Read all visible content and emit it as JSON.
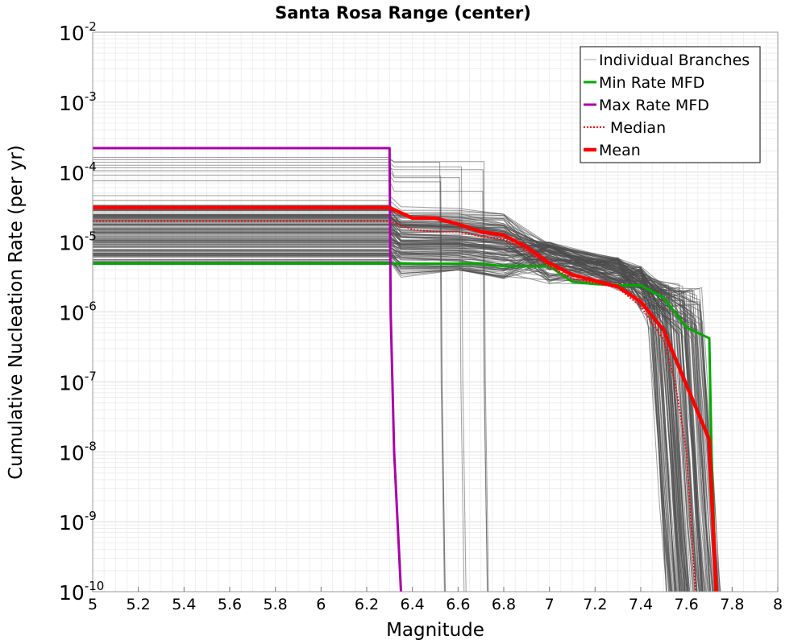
{
  "chart_data": {
    "type": "line",
    "title": "Santa Rosa Range (center)",
    "xlabel": "Magnitude",
    "ylabel": "Cumulative Nucleation Rate (per yr)",
    "xlim": [
      5,
      8
    ],
    "ylim": [
      1e-10,
      0.01
    ],
    "y_scale": "log",
    "grid": true,
    "legend_position": "top-right",
    "x_ticks": [
      "5",
      "5.2",
      "5.4",
      "5.6",
      "5.8",
      "6",
      "6.2",
      "6.4",
      "6.6",
      "6.8",
      "7",
      "7.2",
      "7.4",
      "7.6",
      "7.8",
      "8"
    ],
    "y_ticks": [
      {
        "value": 1e-10,
        "base": "10",
        "exp": "-10"
      },
      {
        "value": 1e-09,
        "base": "10",
        "exp": "-9"
      },
      {
        "value": 1e-08,
        "base": "10",
        "exp": "-8"
      },
      {
        "value": 1e-07,
        "base": "10",
        "exp": "-7"
      },
      {
        "value": 1e-06,
        "base": "10",
        "exp": "-6"
      },
      {
        "value": 1e-05,
        "base": "10",
        "exp": "-5"
      },
      {
        "value": 0.0001,
        "base": "10",
        "exp": "-4"
      },
      {
        "value": 0.001,
        "base": "10",
        "exp": "-3"
      },
      {
        "value": 0.01,
        "base": "10",
        "exp": "-2"
      }
    ],
    "branches": {
      "name": "Individual Branches",
      "color": "#4d4d4d",
      "plateau_samples": [
        4.9e-06,
        6.2e-06,
        7.5e-06,
        9e-06,
        1.1e-05,
        1.3e-05,
        1.5e-05,
        1.8e-05,
        2.1e-05,
        2.4e-05,
        2.8e-05,
        3.3e-05,
        3.9e-05,
        4.6e-05,
        7.5e-05,
        9e-05,
        0.000105,
        0.000115,
        0.000125,
        0.000138,
        0.00015,
        0.000162
      ],
      "early_cutoff_magnitudes": [
        6.52,
        6.61,
        6.71
      ]
    },
    "series": [
      {
        "name": "Min Rate MFD",
        "color": "#00aa00",
        "style": "solid",
        "x": [
          5.0,
          6.3,
          6.4,
          6.5,
          6.6,
          6.7,
          6.8,
          6.9,
          7.0,
          7.1,
          7.2,
          7.3,
          7.4,
          7.5,
          7.6,
          7.7,
          7.71,
          7.72,
          7.73
        ],
        "y": [
          4.9e-06,
          4.9e-06,
          4.9e-06,
          4.9e-06,
          4.9e-06,
          4.9e-06,
          4.5e-06,
          4.5e-06,
          4.5e-06,
          2.7e-06,
          2.5e-06,
          2.4e-06,
          2.4e-06,
          1.6e-06,
          6e-07,
          4.2e-07,
          1e-08,
          1e-09,
          1e-10
        ]
      },
      {
        "name": "Max Rate MFD",
        "color": "#aa00aa",
        "style": "solid",
        "x": [
          5.0,
          6.3,
          6.305,
          6.32,
          6.35
        ],
        "y": [
          0.00022,
          0.00022,
          1e-06,
          1e-08,
          1e-10
        ]
      },
      {
        "name": "Median",
        "color": "#ff0000",
        "style": "dotted",
        "x": [
          5.0,
          6.3,
          6.4,
          6.5,
          6.6,
          6.7,
          6.8,
          6.9,
          7.0,
          7.1,
          7.2,
          7.3,
          7.4,
          7.5,
          7.55,
          7.6,
          7.62,
          7.64
        ],
        "y": [
          2e-05,
          2e-05,
          1.5e-05,
          1.4e-05,
          1.4e-05,
          1.2e-05,
          1.1e-05,
          7.5e-06,
          4.5e-06,
          3e-06,
          2.6e-06,
          2.2e-06,
          1.2e-06,
          4e-07,
          1e-07,
          1e-08,
          1e-09,
          1e-10
        ]
      },
      {
        "name": "Mean",
        "color": "#ff0000",
        "style": "solid-thick",
        "x": [
          5.0,
          6.3,
          6.4,
          6.5,
          6.6,
          6.7,
          6.8,
          6.9,
          7.0,
          7.1,
          7.2,
          7.3,
          7.4,
          7.5,
          7.6,
          7.7,
          7.73
        ],
        "y": [
          3.1e-05,
          3.1e-05,
          2.2e-05,
          2.2e-05,
          1.8e-05,
          1.4e-05,
          1.25e-05,
          8.5e-06,
          5e-06,
          3.4e-06,
          2.8e-06,
          2.3e-06,
          1.4e-06,
          5.5e-07,
          9e-08,
          1.5e-08,
          1e-10
        ]
      }
    ]
  }
}
